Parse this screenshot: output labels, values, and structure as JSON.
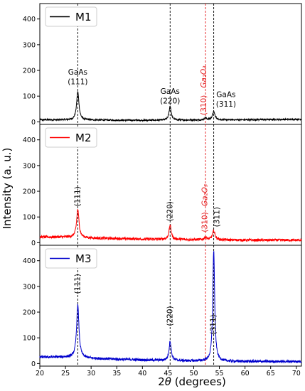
{
  "chart_data": {
    "type": "line",
    "ylabel": "Intensity (a. u.)",
    "xlabel_prefix": "2",
    "xlabel_symbol": "θ",
    "xlabel_suffix": " (degrees)",
    "xlim": [
      20,
      71
    ],
    "ylim": [
      -10,
      460
    ],
    "x_ticks": [
      20,
      25,
      30,
      35,
      40,
      45,
      50,
      55,
      60,
      65,
      70
    ],
    "y_ticks": [
      0,
      100,
      200,
      300,
      400
    ],
    "vlines": [
      {
        "x": 27.4,
        "color": "#000000"
      },
      {
        "x": 45.4,
        "color": "#000000"
      },
      {
        "x": 52.3,
        "color": "#e41a1c"
      },
      {
        "x": 53.9,
        "color": "#000000"
      }
    ],
    "panels": [
      {
        "legend": "M1",
        "color": "#000000",
        "noise_amp": 3,
        "baseline": [
          [
            20,
            8
          ],
          [
            40,
            6
          ],
          [
            60,
            8
          ],
          [
            71,
            10
          ]
        ],
        "peaks": [
          {
            "x": 27.4,
            "h": 110,
            "w": 0.28
          },
          {
            "x": 45.4,
            "h": 55,
            "w": 0.25
          },
          {
            "x": 52.3,
            "h": 8,
            "w": 0.25
          },
          {
            "x": 53.9,
            "h": 32,
            "w": 0.3
          }
        ],
        "annotations": [
          {
            "text": "GaAs",
            "x": 27.4,
            "y": 192,
            "color": "#000000",
            "rotate": false
          },
          {
            "text": "(111)",
            "x": 27.4,
            "y": 155,
            "color": "#000000",
            "rotate": false
          },
          {
            "text": "GaAs",
            "x": 45.4,
            "y": 117,
            "color": "#000000",
            "rotate": false
          },
          {
            "text": "(220)",
            "x": 45.4,
            "y": 80,
            "color": "#000000",
            "rotate": false
          },
          {
            "text": "GaAs",
            "x": 56.3,
            "y": 105,
            "color": "#000000",
            "rotate": false
          },
          {
            "text": "(311)",
            "x": 56.3,
            "y": 68,
            "color": "#000000",
            "rotate": false
          },
          {
            "text": "(310)",
            "x": 52.0,
            "y": 65,
            "color": "#e41a1c",
            "rotate": true
          },
          {
            "text": "Ga₂O₃",
            "x": 52.0,
            "y": 175,
            "color": "#e41a1c",
            "rotate": true,
            "italic": true
          }
        ]
      },
      {
        "legend": "M2",
        "color": "#ff0000",
        "noise_amp": 5,
        "baseline": [
          [
            20,
            22
          ],
          [
            25,
            22
          ],
          [
            30,
            18
          ],
          [
            40,
            14
          ],
          [
            50,
            12
          ],
          [
            60,
            10
          ],
          [
            71,
            10
          ]
        ],
        "peaks": [
          {
            "x": 27.4,
            "h": 110,
            "w": 0.28
          },
          {
            "x": 45.4,
            "h": 55,
            "w": 0.25
          },
          {
            "x": 52.3,
            "h": 10,
            "w": 0.25
          },
          {
            "x": 53.9,
            "h": 35,
            "w": 0.3
          }
        ],
        "annotations": [
          {
            "text": "(111)",
            "x": 27.4,
            "y": 180,
            "color": "#000000",
            "rotate": true
          },
          {
            "text": "(220)",
            "x": 45.4,
            "y": 122,
            "color": "#000000",
            "rotate": true
          },
          {
            "text": "(311)",
            "x": 54.6,
            "y": 100,
            "color": "#000000",
            "rotate": true
          },
          {
            "text": "(310)",
            "x": 52.2,
            "y": 80,
            "color": "#e41a1c",
            "rotate": true
          },
          {
            "text": "Ga₂O₃",
            "x": 52.2,
            "y": 185,
            "color": "#e41a1c",
            "rotate": true,
            "italic": true
          }
        ]
      },
      {
        "legend": "M3",
        "color": "#0000cc",
        "noise_amp": 5,
        "baseline": [
          [
            20,
            25
          ],
          [
            25,
            25
          ],
          [
            30,
            20
          ],
          [
            40,
            14
          ],
          [
            50,
            10
          ],
          [
            60,
            8
          ],
          [
            71,
            8
          ]
        ],
        "peaks": [
          {
            "x": 27.4,
            "h": 205,
            "w": 0.28
          },
          {
            "x": 45.4,
            "h": 75,
            "w": 0.25
          },
          {
            "x": 53.9,
            "h": 432,
            "w": 0.22
          }
        ],
        "annotations": [
          {
            "text": "(111)",
            "x": 27.4,
            "y": 310,
            "color": "#000000",
            "rotate": true
          },
          {
            "text": "(220)",
            "x": 45.4,
            "y": 185,
            "color": "#000000",
            "rotate": true
          },
          {
            "text": "(311)",
            "x": 53.9,
            "y": 152,
            "color": "#000000",
            "rotate": true
          }
        ]
      }
    ]
  }
}
